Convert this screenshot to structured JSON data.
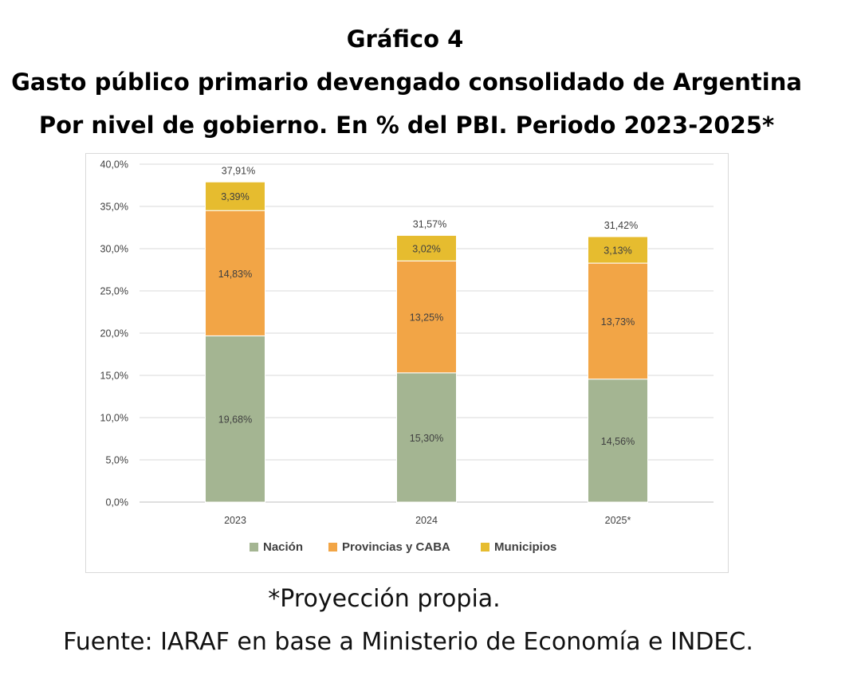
{
  "header": {
    "number": "Gráfico 4",
    "title": "Gasto público primario devengado consolidado de Argentina",
    "subtitle": "Por nivel de gobierno. En % del PBI. Periodo 2023-2025*"
  },
  "footer": {
    "note": "*Proyección propia.",
    "source": "Fuente: IARAF en base a Ministerio de Economía e INDEC."
  },
  "chart_data": {
    "type": "bar",
    "stacked": true,
    "categories": [
      "2023",
      "2024",
      "2025*"
    ],
    "ylim": [
      0,
      40
    ],
    "yticks": [
      0,
      5,
      10,
      15,
      20,
      25,
      30,
      35,
      40
    ],
    "ytick_labels": [
      "0,0%",
      "5,0%",
      "10,0%",
      "15,0%",
      "20,0%",
      "25,0%",
      "30,0%",
      "35,0%",
      "40,0%"
    ],
    "grid": true,
    "legend_position": "bottom",
    "series": [
      {
        "name": "Nación",
        "color": "#a4b592",
        "values": [
          19.68,
          15.3,
          14.56
        ],
        "labels": [
          "19,68%",
          "15,30%",
          "14,56%"
        ]
      },
      {
        "name": "Provincias y CABA",
        "color": "#f2a546",
        "values": [
          14.83,
          13.25,
          13.73
        ],
        "labels": [
          "14,83%",
          "13,25%",
          "13,73%"
        ]
      },
      {
        "name": "Municipios",
        "color": "#e6bc2f",
        "values": [
          3.39,
          3.02,
          3.13
        ],
        "labels": [
          "3,39%",
          "3,02%",
          "3,13%"
        ]
      }
    ],
    "totals": [
      37.91,
      31.57,
      31.42
    ],
    "total_labels": [
      "37,91%",
      "31,57%",
      "31,42%"
    ]
  }
}
